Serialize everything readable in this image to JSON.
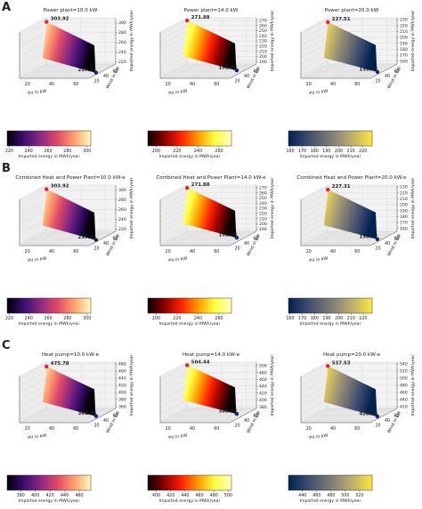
{
  "chart_data": [
    {
      "type": "surface3d",
      "row": "A",
      "title": "Power plant=10.0 kW",
      "xlabel": "PV in kW",
      "ylabel": "Wind in kW",
      "zlabel": "Imported energy in MWh/year",
      "xticks": [
        "20",
        "40",
        "60"
      ],
      "yticks": [
        "20",
        "40",
        "60"
      ],
      "zticks": [
        "220",
        "240",
        "260",
        "280",
        "300"
      ],
      "zlim": [
        215,
        310
      ],
      "max_value": "303.92",
      "min_value": "217.81",
      "colormap": "magma",
      "colorbar_ticks": [
        "220",
        "240",
        "260",
        "280",
        "300"
      ],
      "colorbar_label": "Imported energy in MWh/year"
    },
    {
      "type": "surface3d",
      "row": "A",
      "title": "Power plant=14.0 kW",
      "xlabel": "PV in kW",
      "ylabel": "Wind in kW",
      "zlabel": "Imported energy in MWh/year",
      "xticks": [
        "20",
        "40",
        "60"
      ],
      "yticks": [
        "20",
        "40",
        "60"
      ],
      "zticks": [
        "190",
        "200",
        "210",
        "220",
        "230",
        "240",
        "250",
        "260",
        "270"
      ],
      "zlim": [
        185,
        275
      ],
      "max_value": "271.88",
      "min_value": "192.08",
      "colormap": "hot",
      "colorbar_ticks": [
        "200",
        "220",
        "240",
        "260"
      ],
      "colorbar_label": "Imported energy in MWh/year"
    },
    {
      "type": "surface3d",
      "row": "A",
      "title": "Power plant=20.0 kW",
      "xlabel": "PV in kW",
      "ylabel": "Wind in kW",
      "zlabel": "Imported energy in MWh/year",
      "xticks": [
        "20",
        "40",
        "60"
      ],
      "yticks": [
        "20",
        "40",
        "60"
      ],
      "zticks": [
        "160",
        "170",
        "180",
        "190",
        "200",
        "210",
        "220",
        "230"
      ],
      "zlim": [
        155,
        233
      ],
      "max_value": "227.51",
      "min_value": "158.57",
      "colormap": "cividis",
      "colorbar_ticks": [
        "160",
        "170",
        "180",
        "190",
        "200",
        "210",
        "220"
      ],
      "colorbar_label": "Imported energy in MWh/year"
    },
    {
      "type": "surface3d",
      "row": "B",
      "title": "Combined Heat and Power Plant=10.0 kW-e",
      "xlabel": "PV in kW",
      "ylabel": "Wind in kW",
      "zlabel": "Imported energy in MWh/year",
      "xticks": [
        "20",
        "40",
        "60"
      ],
      "yticks": [
        "20",
        "40",
        "60"
      ],
      "zticks": [
        "220",
        "240",
        "260",
        "280",
        "300"
      ],
      "zlim": [
        215,
        310
      ],
      "max_value": "303.92",
      "min_value": "217.81",
      "colormap": "magma",
      "colorbar_ticks": [
        "220",
        "240",
        "260",
        "280",
        "300"
      ],
      "colorbar_label": "Imported energy in MWh/year"
    },
    {
      "type": "surface3d",
      "row": "B",
      "title": "Combined Heat and Power Plant=14.0 kW-e",
      "xlabel": "PV in kW",
      "ylabel": "Wind in kW",
      "zlabel": "Imported energy in MWh/year",
      "xticks": [
        "20",
        "40",
        "60"
      ],
      "yticks": [
        "20",
        "40",
        "60"
      ],
      "zticks": [
        "190",
        "200",
        "210",
        "220",
        "230",
        "240",
        "250",
        "260",
        "270"
      ],
      "zlim": [
        185,
        275
      ],
      "max_value": "271.88",
      "min_value": "192.08",
      "colormap": "hot",
      "colorbar_ticks": [
        "200",
        "220",
        "240",
        "260"
      ],
      "colorbar_label": "Imported energy in MWh/year"
    },
    {
      "type": "surface3d",
      "row": "B",
      "title": "Combined Heat and Power Plant=20.0 kW-e",
      "xlabel": "PV in kW",
      "ylabel": "Wind in kW",
      "zlabel": "Imported energy in MWh/year",
      "xticks": [
        "20",
        "40",
        "60"
      ],
      "yticks": [
        "20",
        "40",
        "60"
      ],
      "zticks": [
        "160",
        "170",
        "180",
        "190",
        "200",
        "210",
        "220",
        "230"
      ],
      "zlim": [
        155,
        233
      ],
      "max_value": "227.31",
      "min_value": "158.57",
      "colormap": "cividis",
      "colorbar_ticks": [
        "160",
        "170",
        "180",
        "190",
        "200",
        "210",
        "220"
      ],
      "colorbar_label": "Imported energy in MWh/year"
    },
    {
      "type": "surface3d",
      "row": "C",
      "title": "Heat pump=10.0 kW-e",
      "xlabel": "PV in kW",
      "ylabel": "Wind in kW",
      "zlabel": "Imported energy in MWh/year",
      "xticks": [
        "20",
        "40",
        "60"
      ],
      "yticks": [
        "20",
        "40",
        "60"
      ],
      "zticks": [
        "360",
        "380",
        "400",
        "420",
        "440",
        "460",
        "480"
      ],
      "zlim": [
        355,
        485
      ],
      "max_value": "475.78",
      "min_value": "361.45",
      "colormap": "magma",
      "colorbar_ticks": [
        "380",
        "400",
        "420",
        "440",
        "460"
      ],
      "colorbar_label": "Imported energy in MWh/year"
    },
    {
      "type": "surface3d",
      "row": "C",
      "title": "Heat pump=14.0 kW-e",
      "xlabel": "PV in kW",
      "ylabel": "Wind in kW",
      "zlabel": "Imported energy in MWh/year",
      "xticks": [
        "20",
        "40",
        "60"
      ],
      "yticks": [
        "20",
        "40",
        "60"
      ],
      "zticks": [
        "380",
        "400",
        "420",
        "440",
        "460",
        "480",
        "500"
      ],
      "zlim": [
        375,
        510
      ],
      "max_value": "504.44",
      "min_value": "388.22",
      "colormap": "hot",
      "colorbar_ticks": [
        "400",
        "420",
        "440",
        "460",
        "480",
        "500"
      ],
      "colorbar_label": "Imported energy in MWh/year"
    },
    {
      "type": "surface3d",
      "row": "C",
      "title": "Heat pump=20.0 kW-e",
      "xlabel": "PV in kW",
      "ylabel": "Wind in kW",
      "zlabel": "Imported energy in MWh/year",
      "xticks": [
        "20",
        "40",
        "60"
      ],
      "yticks": [
        "20",
        "40",
        "60"
      ],
      "zticks": [
        "420",
        "440",
        "460",
        "480",
        "500",
        "520",
        "540"
      ],
      "zlim": [
        415,
        545
      ],
      "max_value": "537.53",
      "min_value": "420.36",
      "colormap": "cividis",
      "colorbar_ticks": [
        "440",
        "460",
        "480",
        "500",
        "520"
      ],
      "colorbar_label": "Imported energy in MWh/year"
    }
  ],
  "panel_labels": [
    "A",
    "B",
    "C"
  ],
  "colormaps": {
    "magma": [
      "#000004",
      "#3b0f70",
      "#8c2981",
      "#de4968",
      "#fe9f6d",
      "#fcfdbf"
    ],
    "hot": [
      "#0a0000",
      "#8b0000",
      "#ff2000",
      "#ff9a00",
      "#ffff40",
      "#ffffc0"
    ],
    "cividis": [
      "#00224e",
      "#35456c",
      "#666970",
      "#948e77",
      "#c8b866",
      "#fee838"
    ]
  }
}
